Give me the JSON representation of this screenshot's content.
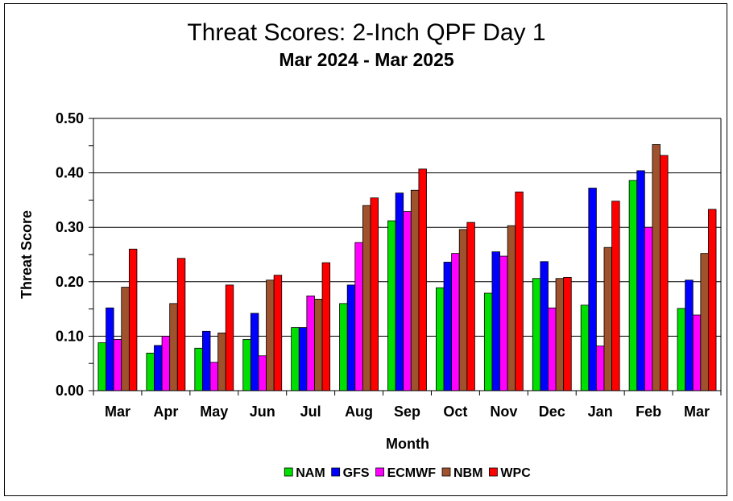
{
  "chart_data": {
    "type": "bar",
    "title": "Threat Scores:  2-Inch QPF Day 1",
    "subtitle": "Mar 2024 - Mar 2025",
    "xlabel": "Month",
    "ylabel": "Threat Score",
    "ylim": [
      0,
      0.5
    ],
    "yticks": [
      "0.00",
      "0.10",
      "0.20",
      "0.30",
      "0.40",
      "0.50"
    ],
    "grid": true,
    "legend_position": "bottom",
    "categories": [
      "Mar",
      "Apr",
      "May",
      "Jun",
      "Jul",
      "Aug",
      "Sep",
      "Oct",
      "Nov",
      "Dec",
      "Jan",
      "Feb",
      "Mar"
    ],
    "series": [
      {
        "name": "NAM",
        "color": "#00e000",
        "values": [
          0.088,
          0.069,
          0.078,
          0.094,
          0.116,
          0.16,
          0.312,
          0.189,
          0.179,
          0.206,
          0.157,
          0.386,
          0.151
        ]
      },
      {
        "name": "GFS",
        "color": "#0000ff",
        "values": [
          0.152,
          0.083,
          0.109,
          0.142,
          0.116,
          0.194,
          0.363,
          0.236,
          0.255,
          0.237,
          0.372,
          0.404,
          0.203
        ]
      },
      {
        "name": "ECMWF",
        "color": "#ff00ff",
        "values": [
          0.094,
          0.1,
          0.052,
          0.064,
          0.174,
          0.272,
          0.329,
          0.252,
          0.247,
          0.152,
          0.082,
          0.3,
          0.139
        ]
      },
      {
        "name": "NBM",
        "color": "#a0522d",
        "values": [
          0.19,
          0.16,
          0.106,
          0.203,
          0.168,
          0.34,
          0.368,
          0.296,
          0.303,
          0.206,
          0.263,
          0.452,
          0.252
        ]
      },
      {
        "name": "WPC",
        "color": "#ff0000",
        "values": [
          0.26,
          0.243,
          0.194,
          0.212,
          0.235,
          0.354,
          0.407,
          0.309,
          0.365,
          0.208,
          0.348,
          0.432,
          0.333
        ]
      }
    ]
  }
}
